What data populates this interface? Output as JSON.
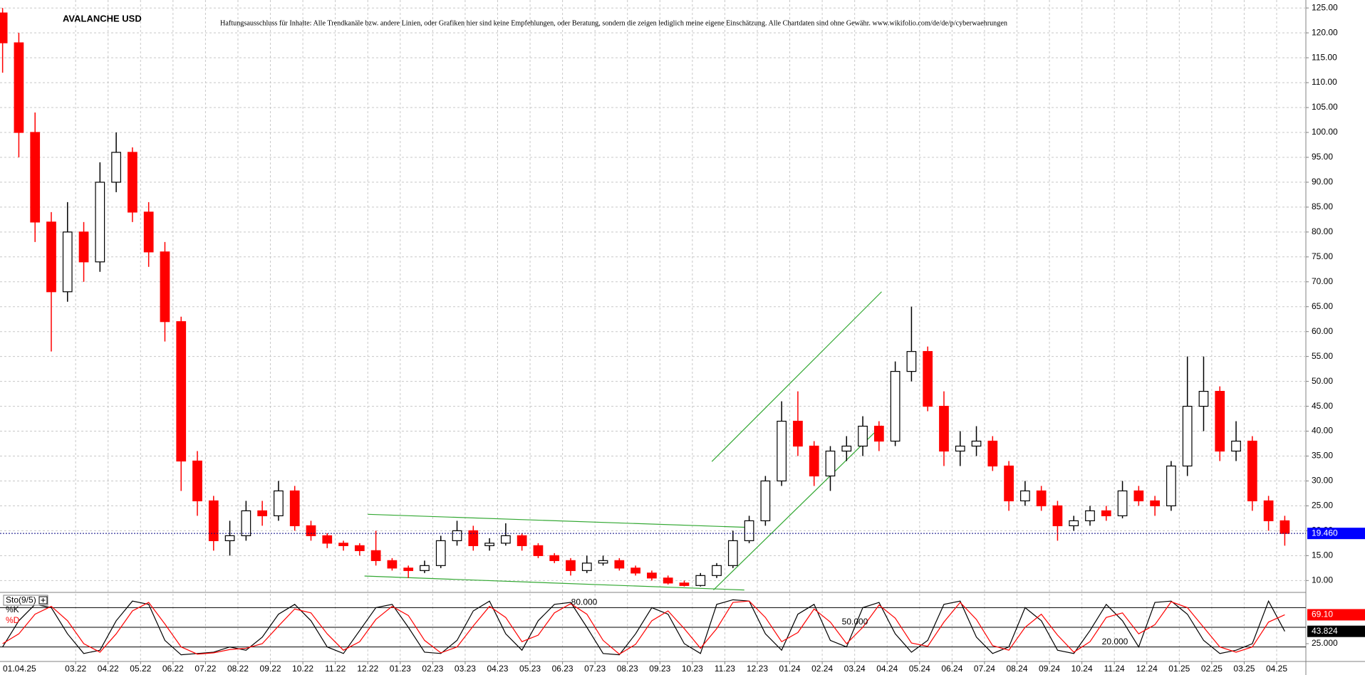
{
  "chart_data": [
    {
      "type": "candlestick",
      "title": "AVALANCHE USD",
      "disclaimer": "Haftungsausschluss für Inhalte: Alle Trendkanäle bzw. andere Linien, oder Grafiken hier sind keine Empfehlungen, oder Beratung, sondern die zeigen lediglich meine eigene Einschätzung. Alle Chartdaten sind ohne Gewähr.  www.wikifolio.com/de/de/p/cyberwaehrungen",
      "date_cursor_label": "01.04.25",
      "up_color": "#000000",
      "down_color": "#ff0000",
      "trendline_color": "#33a833",
      "grid": true,
      "xlim": [
        -0.33,
        39.9
      ],
      "ylim": [
        7.9,
        126.6
      ],
      "xticks": [
        {
          "value": 2,
          "label": "03.22"
        },
        {
          "value": 3,
          "label": "04.22"
        },
        {
          "value": 4,
          "label": "05.22"
        },
        {
          "value": 5,
          "label": "06.22"
        },
        {
          "value": 6,
          "label": "07.22"
        },
        {
          "value": 7,
          "label": "08.22"
        },
        {
          "value": 8,
          "label": "09.22"
        },
        {
          "value": 9,
          "label": "10.22"
        },
        {
          "value": 10,
          "label": "11.22"
        },
        {
          "value": 11,
          "label": "12.22"
        },
        {
          "value": 12,
          "label": "01.23"
        },
        {
          "value": 13,
          "label": "02.23"
        },
        {
          "value": 14,
          "label": "03.23"
        },
        {
          "value": 15,
          "label": "04.23"
        },
        {
          "value": 16,
          "label": "05.23"
        },
        {
          "value": 17,
          "label": "06.23"
        },
        {
          "value": 18,
          "label": "07.23"
        },
        {
          "value": 19,
          "label": "08.23"
        },
        {
          "value": 20,
          "label": "09.23"
        },
        {
          "value": 21,
          "label": "10.23"
        },
        {
          "value": 22,
          "label": "11.23"
        },
        {
          "value": 23,
          "label": "12.23"
        },
        {
          "value": 24,
          "label": "01.24"
        },
        {
          "value": 25,
          "label": "02.24"
        },
        {
          "value": 26,
          "label": "03.24"
        },
        {
          "value": 27,
          "label": "04.24"
        },
        {
          "value": 28,
          "label": "05.24"
        },
        {
          "value": 29,
          "label": "06.24"
        },
        {
          "value": 30,
          "label": "07.24"
        },
        {
          "value": 31,
          "label": "08.24"
        },
        {
          "value": 32,
          "label": "09.24"
        },
        {
          "value": 33,
          "label": "10.24"
        },
        {
          "value": 34,
          "label": "11.24"
        },
        {
          "value": 35,
          "label": "12.24"
        },
        {
          "value": 36,
          "label": "01.25"
        },
        {
          "value": 37,
          "label": "02.25"
        },
        {
          "value": 38,
          "label": "03.25"
        },
        {
          "value": 39,
          "label": "04.25"
        }
      ],
      "yticks": [
        {
          "value": 10,
          "label": "10.00"
        },
        {
          "value": 15,
          "label": "15.00"
        },
        {
          "value": 20,
          "label": "20.00"
        },
        {
          "value": 25,
          "label": "25.00"
        },
        {
          "value": 30,
          "label": "30.00"
        },
        {
          "value": 35,
          "label": "35.00"
        },
        {
          "value": 40,
          "label": "40.00"
        },
        {
          "value": 45,
          "label": "45.00"
        },
        {
          "value": 50,
          "label": "50.00"
        },
        {
          "value": 55,
          "label": "55.00"
        },
        {
          "value": 60,
          "label": "60.00"
        },
        {
          "value": 65,
          "label": "65.00"
        },
        {
          "value": 70,
          "label": "70.00"
        },
        {
          "value": 75,
          "label": "75.00"
        },
        {
          "value": 80,
          "label": "80.00"
        },
        {
          "value": 85,
          "label": "85.00"
        },
        {
          "value": 90,
          "label": "90.00"
        },
        {
          "value": 95,
          "label": "95.00"
        },
        {
          "value": 100,
          "label": "100.00"
        },
        {
          "value": 105,
          "label": "105.00"
        },
        {
          "value": 110,
          "label": "110.00"
        },
        {
          "value": 115,
          "label": "115.00"
        },
        {
          "value": 120,
          "label": "120.00"
        },
        {
          "value": 125,
          "label": "125.00"
        }
      ],
      "last_price": {
        "value": 19.46,
        "label": "19.460",
        "color": "#0000ff"
      },
      "trendlines": [
        {
          "x": [
            11.0,
            22.6
          ],
          "y": [
            23.3,
            20.7
          ]
        },
        {
          "x": [
            10.9,
            22.6
          ],
          "y": [
            10.9,
            8.1
          ]
        },
        {
          "x": [
            21.6,
            26.83
          ],
          "y": [
            33.9,
            68.0
          ]
        },
        {
          "x": [
            21.65,
            26.83
          ],
          "y": [
            8.1,
            41.1
          ]
        }
      ],
      "candles": [
        {
          "x": -0.25,
          "open": 124,
          "high": 125,
          "low": 112,
          "close": 118
        },
        {
          "x": 0.25,
          "open": 118,
          "high": 120,
          "low": 95,
          "close": 100
        },
        {
          "x": 0.75,
          "open": 100,
          "high": 104,
          "low": 78,
          "close": 82
        },
        {
          "x": 1.25,
          "open": 82,
          "high": 84,
          "low": 56,
          "close": 68
        },
        {
          "x": 1.75,
          "open": 68,
          "high": 86,
          "low": 66,
          "close": 80
        },
        {
          "x": 2.25,
          "open": 80,
          "high": 82,
          "low": 70,
          "close": 74
        },
        {
          "x": 2.75,
          "open": 74,
          "high": 94,
          "low": 72,
          "close": 90
        },
        {
          "x": 3.25,
          "open": 90,
          "high": 100,
          "low": 88,
          "close": 96
        },
        {
          "x": 3.75,
          "open": 96,
          "high": 97,
          "low": 82,
          "close": 84
        },
        {
          "x": 4.25,
          "open": 84,
          "high": 86,
          "low": 73,
          "close": 76
        },
        {
          "x": 4.75,
          "open": 76,
          "high": 78,
          "low": 58,
          "close": 62
        },
        {
          "x": 5.25,
          "open": 62,
          "high": 63,
          "low": 28,
          "close": 34
        },
        {
          "x": 5.75,
          "open": 34,
          "high": 36,
          "low": 23,
          "close": 26
        },
        {
          "x": 6.25,
          "open": 26,
          "high": 27,
          "low": 16,
          "close": 18
        },
        {
          "x": 6.75,
          "open": 18,
          "high": 22,
          "low": 15,
          "close": 19
        },
        {
          "x": 7.25,
          "open": 19,
          "high": 26,
          "low": 18,
          "close": 24
        },
        {
          "x": 7.75,
          "open": 24,
          "high": 26,
          "low": 21,
          "close": 23
        },
        {
          "x": 8.25,
          "open": 23,
          "high": 30,
          "low": 22,
          "close": 28
        },
        {
          "x": 8.75,
          "open": 28,
          "high": 29,
          "low": 20,
          "close": 21
        },
        {
          "x": 9.25,
          "open": 21,
          "high": 22,
          "low": 18,
          "close": 19
        },
        {
          "x": 9.75,
          "open": 19,
          "high": 19.5,
          "low": 16.5,
          "close": 17.5
        },
        {
          "x": 10.25,
          "open": 17.5,
          "high": 18,
          "low": 16,
          "close": 17
        },
        {
          "x": 10.75,
          "open": 17,
          "high": 17.5,
          "low": 15,
          "close": 16
        },
        {
          "x": 11.25,
          "open": 16,
          "high": 20,
          "low": 13,
          "close": 14
        },
        {
          "x": 11.75,
          "open": 14,
          "high": 14.5,
          "low": 12,
          "close": 12.5
        },
        {
          "x": 12.25,
          "open": 12.5,
          "high": 13,
          "low": 10.5,
          "close": 12
        },
        {
          "x": 12.75,
          "open": 12,
          "high": 14,
          "low": 11.5,
          "close": 13
        },
        {
          "x": 13.25,
          "open": 13,
          "high": 19,
          "low": 12.5,
          "close": 18
        },
        {
          "x": 13.75,
          "open": 18,
          "high": 22,
          "low": 17,
          "close": 20
        },
        {
          "x": 14.25,
          "open": 20,
          "high": 21,
          "low": 16,
          "close": 17
        },
        {
          "x": 14.75,
          "open": 17,
          "high": 18.5,
          "low": 16,
          "close": 17.5
        },
        {
          "x": 15.25,
          "open": 17.5,
          "high": 21.5,
          "low": 17,
          "close": 19
        },
        {
          "x": 15.75,
          "open": 19,
          "high": 19.5,
          "low": 16,
          "close": 17
        },
        {
          "x": 16.25,
          "open": 17,
          "high": 17.5,
          "low": 14.5,
          "close": 15
        },
        {
          "x": 16.75,
          "open": 15,
          "high": 15.5,
          "low": 13.5,
          "close": 14
        },
        {
          "x": 17.25,
          "open": 14,
          "high": 14.5,
          "low": 11,
          "close": 12
        },
        {
          "x": 17.75,
          "open": 12,
          "high": 15,
          "low": 11.5,
          "close": 13.5
        },
        {
          "x": 18.25,
          "open": 13.5,
          "high": 15,
          "low": 13,
          "close": 14
        },
        {
          "x": 18.75,
          "open": 14,
          "high": 14.5,
          "low": 12,
          "close": 12.5
        },
        {
          "x": 19.25,
          "open": 12.5,
          "high": 13,
          "low": 11,
          "close": 11.5
        },
        {
          "x": 19.75,
          "open": 11.5,
          "high": 12,
          "low": 10,
          "close": 10.5
        },
        {
          "x": 20.25,
          "open": 10.5,
          "high": 11,
          "low": 9.2,
          "close": 9.5
        },
        {
          "x": 20.75,
          "open": 9.5,
          "high": 10,
          "low": 8.8,
          "close": 9
        },
        {
          "x": 21.25,
          "open": 9,
          "high": 11.5,
          "low": 8.8,
          "close": 11
        },
        {
          "x": 21.75,
          "open": 11,
          "high": 13.5,
          "low": 10.5,
          "close": 13
        },
        {
          "x": 22.25,
          "open": 13,
          "high": 20,
          "low": 12.5,
          "close": 18
        },
        {
          "x": 22.75,
          "open": 18,
          "high": 23,
          "low": 17.5,
          "close": 22
        },
        {
          "x": 23.25,
          "open": 22,
          "high": 31,
          "low": 21,
          "close": 30
        },
        {
          "x": 23.75,
          "open": 30,
          "high": 46,
          "low": 29,
          "close": 42
        },
        {
          "x": 24.25,
          "open": 42,
          "high": 48,
          "low": 35,
          "close": 37
        },
        {
          "x": 24.75,
          "open": 37,
          "high": 38,
          "low": 29,
          "close": 31
        },
        {
          "x": 25.25,
          "open": 31,
          "high": 37,
          "low": 28,
          "close": 36
        },
        {
          "x": 25.75,
          "open": 36,
          "high": 39,
          "low": 34,
          "close": 37
        },
        {
          "x": 26.25,
          "open": 37,
          "high": 43,
          "low": 35,
          "close": 41
        },
        {
          "x": 26.75,
          "open": 41,
          "high": 42,
          "low": 36,
          "close": 38
        },
        {
          "x": 27.25,
          "open": 38,
          "high": 54,
          "low": 37,
          "close": 52
        },
        {
          "x": 27.75,
          "open": 52,
          "high": 65,
          "low": 50,
          "close": 56
        },
        {
          "x": 28.25,
          "open": 56,
          "high": 57,
          "low": 44,
          "close": 45
        },
        {
          "x": 28.75,
          "open": 45,
          "high": 48,
          "low": 33,
          "close": 36
        },
        {
          "x": 29.25,
          "open": 36,
          "high": 40,
          "low": 33,
          "close": 37
        },
        {
          "x": 29.75,
          "open": 37,
          "high": 41,
          "low": 35,
          "close": 38
        },
        {
          "x": 30.25,
          "open": 38,
          "high": 39,
          "low": 32,
          "close": 33
        },
        {
          "x": 30.75,
          "open": 33,
          "high": 34,
          "low": 24,
          "close": 26
        },
        {
          "x": 31.25,
          "open": 26,
          "high": 30,
          "low": 25,
          "close": 28
        },
        {
          "x": 31.75,
          "open": 28,
          "high": 29,
          "low": 24,
          "close": 25
        },
        {
          "x": 32.25,
          "open": 25,
          "high": 26,
          "low": 18,
          "close": 21
        },
        {
          "x": 32.75,
          "open": 21,
          "high": 23,
          "low": 20,
          "close": 22
        },
        {
          "x": 33.25,
          "open": 22,
          "high": 25,
          "low": 21,
          "close": 24
        },
        {
          "x": 33.75,
          "open": 24,
          "high": 25,
          "low": 22,
          "close": 23
        },
        {
          "x": 34.25,
          "open": 23,
          "high": 30,
          "low": 22.5,
          "close": 28
        },
        {
          "x": 34.75,
          "open": 28,
          "high": 29,
          "low": 25,
          "close": 26
        },
        {
          "x": 35.25,
          "open": 26,
          "high": 27,
          "low": 23,
          "close": 25
        },
        {
          "x": 35.75,
          "open": 25,
          "high": 34,
          "low": 24,
          "close": 33
        },
        {
          "x": 36.25,
          "open": 33,
          "high": 55,
          "low": 31,
          "close": 45
        },
        {
          "x": 36.75,
          "open": 45,
          "high": 55,
          "low": 40,
          "close": 48
        },
        {
          "x": 37.25,
          "open": 48,
          "high": 49,
          "low": 34,
          "close": 36
        },
        {
          "x": 37.75,
          "open": 36,
          "high": 42,
          "low": 34,
          "close": 38
        },
        {
          "x": 38.25,
          "open": 38,
          "high": 39,
          "low": 24,
          "close": 26
        },
        {
          "x": 38.75,
          "open": 26,
          "high": 27,
          "low": 20,
          "close": 22
        },
        {
          "x": 39.25,
          "open": 22,
          "high": 23,
          "low": 17,
          "close": 19.46
        }
      ]
    },
    {
      "type": "line",
      "label": "Sto(9/5)",
      "ylim": [
        0,
        100
      ],
      "yticks": [
        {
          "value": 25,
          "label": "25.000"
        }
      ],
      "levels": [
        {
          "value": 80,
          "label": "80.000"
        },
        {
          "value": 50,
          "label": "50.000"
        },
        {
          "value": 20,
          "label": "20.000"
        }
      ],
      "series": [
        {
          "name": "%K",
          "color": "#000000",
          "last_label": "43.824",
          "values": [
            20,
            60,
            85,
            80,
            40,
            10,
            15,
            60,
            90,
            85,
            30,
            8,
            10,
            12,
            20,
            15,
            35,
            70,
            85,
            60,
            20,
            10,
            45,
            80,
            85,
            50,
            12,
            10,
            30,
            75,
            90,
            40,
            15,
            60,
            85,
            88,
            50,
            10,
            8,
            40,
            80,
            70,
            25,
            10,
            85,
            92,
            90,
            40,
            15,
            70,
            85,
            30,
            20,
            80,
            88,
            40,
            12,
            30,
            85,
            90,
            35,
            10,
            20,
            80,
            60,
            15,
            10,
            45,
            85,
            60,
            20,
            88,
            90,
            70,
            30,
            10,
            15,
            25,
            90,
            43.824
          ]
        },
        {
          "name": "%D",
          "color": "#ff0000",
          "last_label": "69.10",
          "values": [
            25,
            40,
            70,
            82,
            60,
            25,
            12,
            40,
            75,
            88,
            55,
            20,
            9,
            11,
            16,
            18,
            25,
            52,
            78,
            72,
            40,
            15,
            28,
            62,
            82,
            68,
            30,
            11,
            20,
            52,
            82,
            65,
            28,
            38,
            72,
            86,
            70,
            30,
            9,
            24,
            60,
            75,
            48,
            18,
            48,
            88,
            90,
            65,
            28,
            42,
            78,
            58,
            25,
            50,
            84,
            64,
            26,
            21,
            58,
            88,
            62,
            22,
            15,
            50,
            70,
            38,
            12,
            28,
            65,
            72,
            40,
            54,
            89,
            80,
            50,
            20,
            12,
            20,
            58,
            69.1
          ]
        }
      ]
    }
  ]
}
